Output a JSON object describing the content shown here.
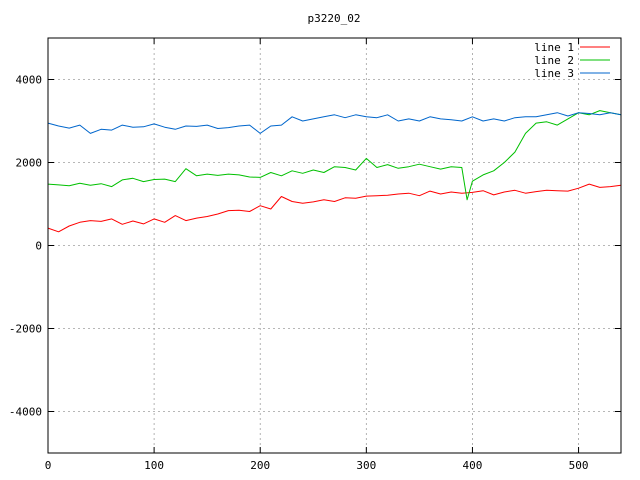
{
  "chart_data": {
    "type": "line",
    "title": "p3220_02",
    "xlabel": "",
    "ylabel": "",
    "xlim": [
      0,
      540
    ],
    "ylim": [
      -5000,
      5000
    ],
    "x_ticks": [
      0,
      100,
      200,
      300,
      400,
      500
    ],
    "y_ticks": [
      -4000,
      -2000,
      0,
      2000,
      4000
    ],
    "grid": true,
    "legend_position": "top-right",
    "series": [
      {
        "name": "line 1",
        "color": "#ff0000",
        "x": [
          0,
          10,
          20,
          30,
          40,
          50,
          60,
          70,
          80,
          90,
          100,
          110,
          120,
          130,
          140,
          150,
          160,
          170,
          180,
          190,
          200,
          210,
          220,
          230,
          240,
          250,
          260,
          270,
          280,
          290,
          300,
          310,
          320,
          330,
          340,
          350,
          360,
          370,
          380,
          390,
          400,
          410,
          420,
          430,
          440,
          450,
          460,
          470,
          480,
          490,
          500,
          510,
          520,
          530,
          540
        ],
        "values": [
          420,
          330,
          470,
          560,
          600,
          580,
          640,
          510,
          590,
          520,
          640,
          560,
          720,
          600,
          660,
          700,
          760,
          840,
          850,
          820,
          960,
          880,
          1180,
          1060,
          1020,
          1050,
          1100,
          1060,
          1150,
          1140,
          1190,
          1200,
          1210,
          1240,
          1260,
          1200,
          1310,
          1240,
          1290,
          1260,
          1280,
          1320,
          1220,
          1290,
          1330,
          1260,
          1300,
          1330,
          1320,
          1310,
          1380,
          1480,
          1400,
          1420,
          1450
        ]
      },
      {
        "name": "line 2",
        "color": "#00c000",
        "x": [
          0,
          10,
          20,
          30,
          40,
          50,
          60,
          70,
          80,
          90,
          100,
          110,
          120,
          130,
          140,
          150,
          160,
          170,
          180,
          190,
          200,
          210,
          220,
          230,
          240,
          250,
          260,
          270,
          280,
          290,
          300,
          310,
          320,
          330,
          340,
          350,
          360,
          370,
          380,
          390,
          395,
          400,
          410,
          420,
          430,
          440,
          450,
          460,
          470,
          480,
          490,
          500,
          510,
          520,
          530,
          540
        ],
        "values": [
          1480,
          1460,
          1440,
          1500,
          1450,
          1490,
          1420,
          1580,
          1620,
          1540,
          1590,
          1600,
          1540,
          1850,
          1680,
          1720,
          1690,
          1720,
          1700,
          1650,
          1640,
          1760,
          1680,
          1800,
          1740,
          1820,
          1760,
          1900,
          1880,
          1820,
          2100,
          1880,
          1950,
          1860,
          1900,
          1960,
          1900,
          1840,
          1900,
          1880,
          1100,
          1550,
          1700,
          1800,
          2000,
          2250,
          2700,
          2950,
          2980,
          2900,
          3050,
          3200,
          3150,
          3250,
          3200,
          3150
        ]
      },
      {
        "name": "line 3",
        "color": "#0066cc",
        "x": [
          0,
          10,
          20,
          30,
          40,
          50,
          60,
          70,
          80,
          90,
          100,
          110,
          120,
          130,
          140,
          150,
          160,
          170,
          180,
          190,
          200,
          210,
          220,
          230,
          240,
          250,
          260,
          270,
          280,
          290,
          300,
          310,
          320,
          330,
          340,
          350,
          360,
          370,
          380,
          390,
          400,
          410,
          420,
          430,
          440,
          450,
          460,
          470,
          480,
          490,
          500,
          510,
          520,
          530,
          540
        ],
        "values": [
          2950,
          2880,
          2830,
          2900,
          2700,
          2800,
          2780,
          2900,
          2850,
          2860,
          2930,
          2850,
          2800,
          2880,
          2870,
          2900,
          2820,
          2840,
          2880,
          2900,
          2700,
          2880,
          2900,
          3100,
          3000,
          3050,
          3100,
          3150,
          3080,
          3150,
          3100,
          3080,
          3150,
          3000,
          3050,
          3000,
          3100,
          3050,
          3030,
          3000,
          3100,
          3000,
          3050,
          3000,
          3080,
          3100,
          3100,
          3150,
          3200,
          3120,
          3200,
          3180,
          3150,
          3200,
          3150
        ]
      }
    ]
  }
}
